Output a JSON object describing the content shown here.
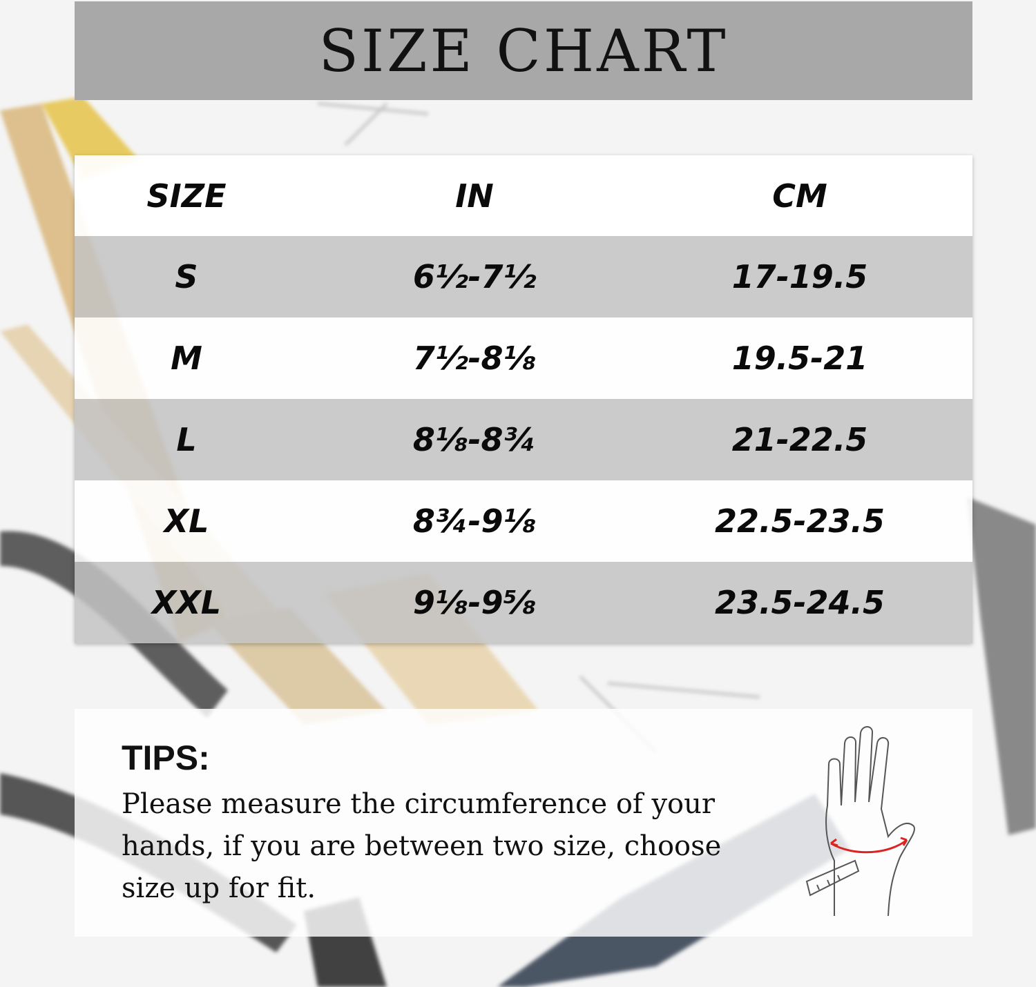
{
  "title": "SIZE CHART",
  "table": {
    "headers": [
      "SIZE",
      "IN",
      "CM"
    ],
    "rows": [
      {
        "size": "S",
        "in": "6½-7½",
        "cm": "17-19.5"
      },
      {
        "size": "M",
        "in": "7½-8⅛",
        "cm": "19.5-21"
      },
      {
        "size": "L",
        "in": "8⅛-8¾",
        "cm": "21-22.5"
      },
      {
        "size": "XL",
        "in": "8¾-9⅛",
        "cm": "22.5-23.5"
      },
      {
        "size": "XXL",
        "in": "9⅛-9⅝",
        "cm": "23.5-24.5"
      }
    ]
  },
  "tips": {
    "title": "TIPS:",
    "text": "Please measure the circumference of your hands, if you are between two size, choose size up for fit."
  },
  "icons": {
    "hand": "hand-measuring-tape-icon"
  },
  "colors": {
    "title_band": "#a8a8a8",
    "row_gray": "#c3c3c3",
    "tape": "#d22"
  }
}
